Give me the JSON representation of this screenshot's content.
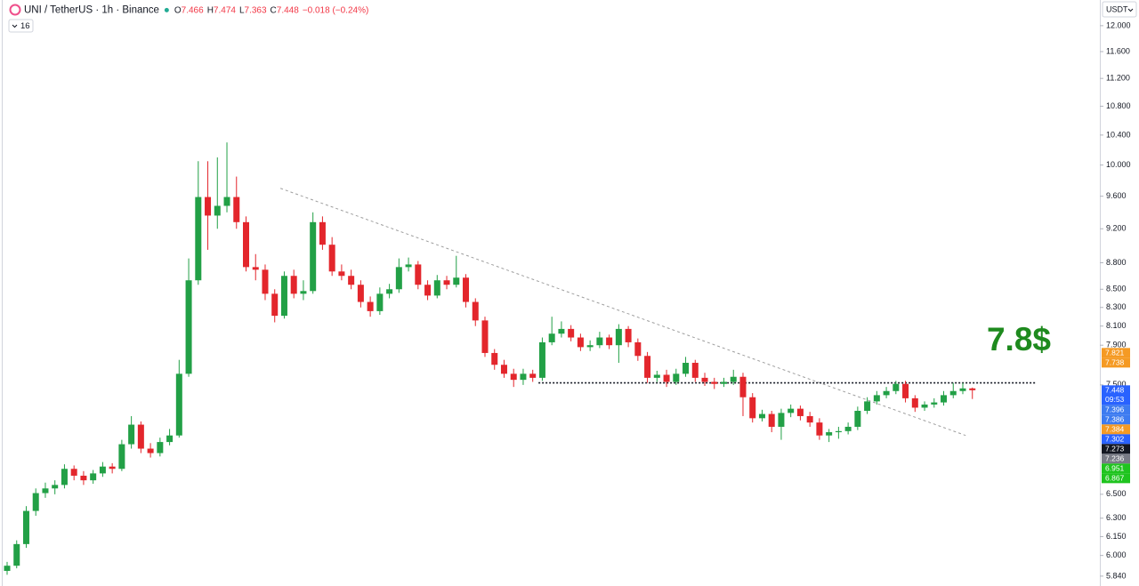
{
  "chart_data": {
    "type": "candlestick",
    "title": "UNI / TetherUS · 1h · Binance",
    "ohlc_legend": [
      {
        "key": "O",
        "value": 7.466
      },
      {
        "key": "H",
        "value": 7.474
      },
      {
        "key": "L",
        "value": 7.363
      },
      {
        "key": "C",
        "value": 7.448
      }
    ],
    "change": "−0.018 (−0.24%)",
    "legend_color": "#f23645",
    "indicator": "16",
    "currency": "USDT",
    "annotation": {
      "text": "7.8$",
      "color": "#1e8a1e"
    },
    "log_scale": true,
    "grid": false,
    "up_color": "#22a046",
    "down_color": "#e3262c",
    "ylim": [
      5.765,
      12.41
    ],
    "yticks": [
      {
        "value": 12,
        "label": "12.000"
      },
      {
        "value": 11.6,
        "label": "11.600"
      },
      {
        "value": 11.2,
        "label": "11.200"
      },
      {
        "value": 10.8,
        "label": "10.800"
      },
      {
        "value": 10.4,
        "label": "10.400"
      },
      {
        "value": 10,
        "label": "10.000"
      },
      {
        "value": 9.6,
        "label": "9.600"
      },
      {
        "value": 9.2,
        "label": "9.200"
      },
      {
        "value": 8.8,
        "label": "8.800"
      },
      {
        "value": 8.5,
        "label": "8.500"
      },
      {
        "value": 8.3,
        "label": "8.300"
      },
      {
        "value": 8.1,
        "label": "8.100"
      },
      {
        "value": 7.9,
        "label": "7.900"
      },
      {
        "value": 7.5,
        "label": "7.500"
      },
      {
        "value": 6.5,
        "label": "6.500"
      },
      {
        "value": 6.3,
        "label": "6.300"
      },
      {
        "value": 6.15,
        "label": "6.150"
      },
      {
        "value": 6,
        "label": "6.000"
      },
      {
        "value": 5.84,
        "label": "5.840"
      }
    ],
    "open": [
      5.88,
      5.92,
      6.09,
      6.36,
      6.51,
      6.55,
      6.58,
      6.72,
      6.66,
      6.62,
      6.68,
      6.74,
      6.72,
      6.94,
      7.12,
      6.9,
      6.86,
      6.96,
      7.02,
      7.61,
      8.6,
      9.59,
      9.36,
      9.48,
      9.59,
      9.28,
      8.75,
      8.72,
      8.45,
      8.21,
      8.65,
      8.45,
      8.48,
      9.28,
      9.01,
      8.7,
      8.65,
      8.55,
      8.36,
      8.26,
      8.45,
      8.5,
      8.75,
      8.78,
      8.55,
      8.43,
      8.6,
      8.55,
      8.63,
      8.36,
      8.16,
      7.82,
      7.7,
      7.61,
      7.55,
      7.61,
      7.57,
      7.93,
      8.02,
      8.07,
      7.98,
      7.88,
      7.9,
      7.98,
      7.9,
      8.07,
      7.93,
      7.79,
      7.57,
      7.6,
      7.53,
      7.61,
      7.72,
      7.57,
      7.53,
      7.51,
      7.53,
      7.58,
      7.38,
      7.18,
      7.22,
      7.1,
      7.23,
      7.27,
      7.2,
      7.14,
      7.02,
      7.05,
      7.06,
      7.1,
      7.25,
      7.34,
      7.4,
      7.44,
      7.51,
      7.37,
      7.28,
      7.31,
      7.33,
      7.4,
      7.44,
      7.466
    ],
    "high": [
      5.95,
      6.12,
      6.4,
      6.55,
      6.6,
      6.62,
      6.76,
      6.75,
      6.7,
      6.71,
      6.78,
      6.77,
      6.98,
      7.2,
      7.15,
      6.95,
      7.0,
      7.08,
      7.75,
      8.85,
      10.05,
      10.05,
      10.1,
      10.3,
      9.85,
      9.35,
      8.9,
      8.78,
      8.5,
      8.7,
      8.72,
      8.6,
      9.4,
      9.35,
      9.1,
      8.78,
      8.72,
      8.6,
      8.42,
      8.52,
      8.56,
      8.85,
      8.86,
      8.82,
      8.6,
      8.66,
      8.65,
      8.88,
      8.67,
      8.4,
      8.2,
      7.86,
      7.75,
      7.66,
      7.66,
      7.65,
      7.98,
      8.2,
      8.15,
      8.11,
      8.02,
      7.95,
      8.04,
      8.01,
      8.12,
      8.1,
      7.97,
      7.83,
      7.64,
      7.65,
      7.66,
      7.78,
      7.75,
      7.62,
      7.57,
      7.57,
      7.65,
      7.62,
      7.42,
      7.26,
      7.25,
      7.27,
      7.31,
      7.3,
      7.24,
      7.18,
      7.08,
      7.1,
      7.14,
      7.29,
      7.38,
      7.44,
      7.48,
      7.54,
      7.54,
      7.4,
      7.34,
      7.37,
      7.44,
      7.52,
      7.52,
      7.474
    ],
    "low": [
      5.85,
      5.9,
      6.06,
      6.32,
      6.47,
      6.5,
      6.55,
      6.62,
      6.58,
      6.59,
      6.65,
      6.68,
      6.7,
      6.9,
      6.86,
      6.82,
      6.83,
      6.93,
      7.0,
      7.58,
      8.55,
      8.95,
      9.2,
      9.4,
      9.2,
      8.7,
      8.6,
      8.38,
      8.14,
      8.18,
      8.4,
      8.38,
      8.45,
      8.95,
      8.65,
      8.6,
      8.5,
      8.3,
      8.2,
      8.22,
      8.4,
      8.46,
      8.7,
      8.5,
      8.38,
      8.4,
      8.5,
      8.52,
      8.3,
      8.1,
      7.78,
      7.65,
      7.57,
      7.48,
      7.5,
      7.53,
      7.54,
      7.9,
      7.98,
      7.94,
      7.84,
      7.84,
      7.87,
      7.86,
      7.72,
      7.88,
      7.74,
      7.52,
      7.53,
      7.48,
      7.5,
      7.58,
      7.53,
      7.49,
      7.46,
      7.48,
      7.5,
      7.2,
      7.14,
      7.15,
      7.05,
      6.98,
      7.19,
      7.16,
      7.1,
      6.98,
      6.96,
      6.99,
      7.03,
      7.07,
      7.22,
      7.31,
      7.37,
      7.41,
      7.33,
      7.24,
      7.25,
      7.28,
      7.3,
      7.37,
      7.41,
      7.363
    ],
    "close": [
      5.92,
      6.09,
      6.36,
      6.51,
      6.55,
      6.58,
      6.72,
      6.66,
      6.62,
      6.68,
      6.74,
      6.72,
      6.94,
      7.12,
      6.9,
      6.86,
      6.96,
      7.02,
      7.61,
      8.6,
      9.59,
      9.36,
      9.48,
      9.59,
      9.28,
      8.75,
      8.72,
      8.45,
      8.21,
      8.65,
      8.45,
      8.48,
      9.28,
      9.01,
      8.7,
      8.65,
      8.55,
      8.36,
      8.26,
      8.45,
      8.5,
      8.75,
      8.78,
      8.55,
      8.43,
      8.6,
      8.55,
      8.63,
      8.36,
      8.16,
      7.82,
      7.7,
      7.61,
      7.55,
      7.61,
      7.57,
      7.93,
      8.02,
      8.07,
      7.98,
      7.88,
      7.9,
      7.98,
      7.9,
      8.07,
      7.93,
      7.79,
      7.57,
      7.6,
      7.53,
      7.61,
      7.72,
      7.57,
      7.53,
      7.51,
      7.53,
      7.58,
      7.38,
      7.18,
      7.22,
      7.1,
      7.23,
      7.27,
      7.2,
      7.14,
      7.02,
      7.05,
      7.06,
      7.1,
      7.25,
      7.34,
      7.4,
      7.44,
      7.51,
      7.37,
      7.28,
      7.31,
      7.33,
      7.4,
      7.44,
      7.466,
      7.448
    ],
    "trendline": {
      "x": [
        28.6,
        100.3
      ],
      "values": [
        9.7,
        7.02
      ],
      "color": "#9e9e9e"
    },
    "level": {
      "x": [
        55.6,
        107.7
      ],
      "values": [
        7.52,
        7.52
      ],
      "color": "#131722"
    },
    "price_labels": [
      {
        "value": 7.821,
        "color": "#f59a23"
      },
      {
        "value": 7.738,
        "color": "#f59a23"
      },
      {
        "value": 7.448,
        "color": "#2962ff",
        "countdown": "09:53"
      },
      {
        "value": 7.396,
        "color": "#3d7bf0"
      },
      {
        "value": 7.386,
        "color": "#3d7bf0"
      },
      {
        "value": 7.384,
        "color": "#f59a23"
      },
      {
        "value": 7.302,
        "color": "#2962ff"
      },
      {
        "value": 7.273,
        "color": "#131722"
      },
      {
        "value": 7.236,
        "color": "#787b86"
      },
      {
        "value": 6.951,
        "color": "#1fc41f"
      },
      {
        "value": 6.867,
        "color": "#1fc41f"
      }
    ]
  }
}
